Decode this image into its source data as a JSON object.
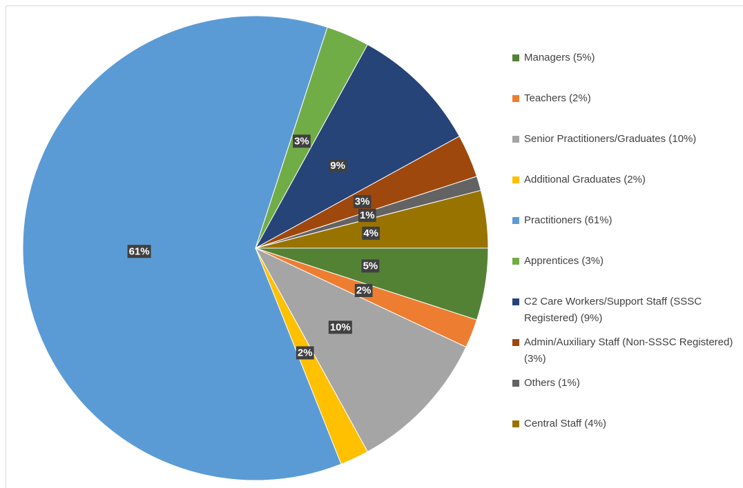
{
  "chart_data": {
    "type": "pie",
    "categories": [
      "Managers (5%)",
      "Teachers (2%)",
      "Senior Practitioners/Graduates (10%)",
      "Additional Graduates (2%)",
      "Practitioners (61%)",
      "Apprentices (3%)",
      "C2 Care Workers/Support Staff (SSSC Registered) (9%)",
      "Admin/Auxiliary Staff (Non-SSSC Registered) (3%)",
      "Others (1%)",
      "Central Staff (4%)"
    ],
    "values": [
      5,
      2,
      10,
      2,
      61,
      3,
      9,
      3,
      1,
      4
    ],
    "value_labels": [
      "5%",
      "2%",
      "10%",
      "2%",
      "61%",
      "3%",
      "9%",
      "3%",
      "1%",
      "4%"
    ],
    "colors": [
      "#548235",
      "#ed7d31",
      "#a5a5a5",
      "#ffc000",
      "#5b9bd5",
      "#70ad47",
      "#264478",
      "#9e480e",
      "#636363",
      "#997300"
    ],
    "legend": "right"
  }
}
